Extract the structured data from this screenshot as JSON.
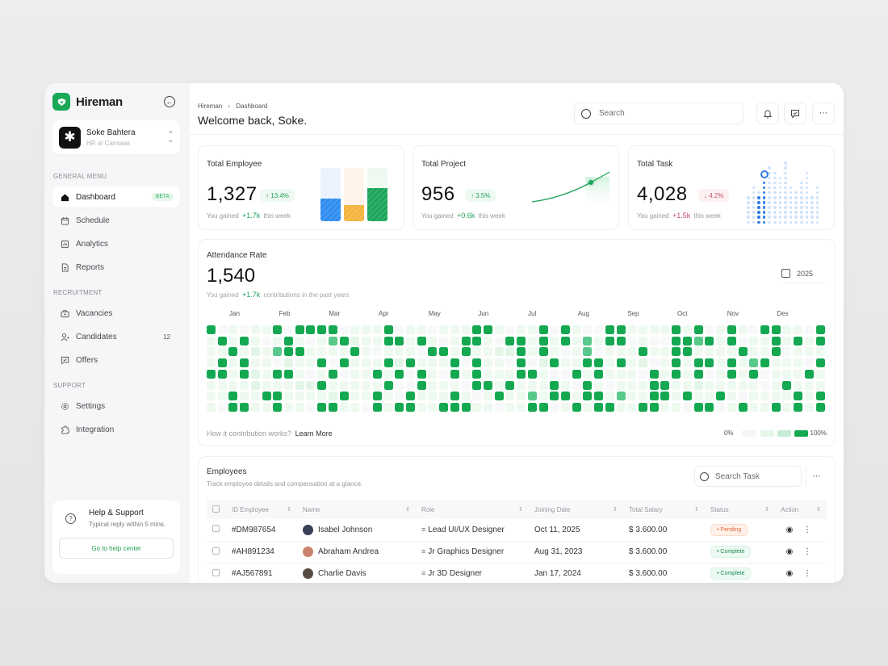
{
  "sidebar": {
    "brand": "Hireman",
    "workspace": {
      "name": "Soke Bahtera",
      "subtitle": "HR at Cansaas"
    },
    "sections": [
      {
        "label": "GENERAL MENU",
        "items": [
          {
            "label": "Dashboard",
            "icon": "home-icon",
            "badge": "BETA",
            "active": true
          },
          {
            "label": "Schedule",
            "icon": "calendar-icon"
          },
          {
            "label": "Analytics",
            "icon": "analytics-icon"
          },
          {
            "label": "Reports",
            "icon": "report-icon"
          }
        ]
      },
      {
        "label": "RECRUITMENT",
        "items": [
          {
            "label": "Vacancies",
            "icon": "briefcase-icon"
          },
          {
            "label": "Candidates",
            "icon": "user-plus-icon",
            "count": "12"
          },
          {
            "label": "Offers",
            "icon": "offer-icon"
          }
        ]
      },
      {
        "label": "SUPPORT",
        "items": [
          {
            "label": "Settings",
            "icon": "gear-icon"
          },
          {
            "label": "Integration",
            "icon": "puzzle-icon"
          }
        ]
      }
    ],
    "help": {
      "title": "Help & Support",
      "subtitle": "Typical reply within 5 mins.",
      "button": "Go to help center"
    }
  },
  "header": {
    "breadcrumb": [
      "Hireman",
      "Dashboard"
    ],
    "title": "Welcome back, Soke.",
    "search_placeholder": "Search"
  },
  "stats": [
    {
      "title": "Total Employee",
      "value": "1,327",
      "change": "↑ 13.4%",
      "trend": "up",
      "foot_prefix": "You gained",
      "foot_value": "+1.7k",
      "foot_suffix": "this week",
      "bars": [
        {
          "color": "#2f8cf0",
          "bg": "#eaf3fe",
          "pct": 42
        },
        {
          "color": "#f5b43e",
          "bg": "#fff4ea",
          "pct": 30
        },
        {
          "color": "#1aa55a",
          "bg": "#edf9f1",
          "pct": 62
        }
      ]
    },
    {
      "title": "Total Project",
      "value": "956",
      "change": "↑ 3.5%",
      "trend": "up",
      "foot_prefix": "You gained",
      "foot_value": "+0.6k",
      "foot_suffix": "this week"
    },
    {
      "title": "Total Task",
      "value": "4,028",
      "change": "↓ 4.2%",
      "trend": "down",
      "foot_prefix": "You gained",
      "foot_value": "+1.5k",
      "foot_suffix": "this week"
    }
  ],
  "attendance": {
    "title": "Attendance Rate",
    "value": "1,540",
    "sub_prefix": "You gained",
    "sub_value": "+1.7k",
    "sub_suffix": "contributions in the past years",
    "year": "2025",
    "months": [
      "Jan",
      "Feb",
      "Mar",
      "Apr",
      "May",
      "Jun",
      "Jul",
      "Aug",
      "Sep",
      "Oct",
      "Nov",
      "Des"
    ],
    "footer_text": "How it contribution works?",
    "footer_link": "Learn More",
    "legend_min": "0%",
    "legend_max": "100%",
    "legend_colors": [
      "#f4f5f7",
      "#e6f7ea",
      "#c5ecd5",
      "#14a851"
    ]
  },
  "chart_data": {
    "type": "heatmap",
    "title": "Attendance Rate",
    "x_labels": [
      "Jan",
      "Feb",
      "Mar",
      "Apr",
      "May",
      "Jun",
      "Jul",
      "Aug",
      "Sep",
      "Oct",
      "Nov",
      "Des"
    ],
    "rows": 8,
    "columns": 56,
    "levels": [
      0,
      1,
      2,
      3,
      4
    ],
    "grid": [
      "40101140444401114011011144101140410044111141401410441104",
      "14141014101342114414101441044141413144010044341401141414",
      "11412134411114101110441411224141013011141144111141140111",
      "14141102114041114241114041104024114414120141441413411104",
      "44142144101401141404104141114410041411104141401414011141",
      "11112111224111114004111044141114104101114411211111014111",
      "11411441111241141041114101411314414413114414114101111414",
      "10441141104411041441144411011440141441144110440141141414"
    ]
  },
  "employees": {
    "title": "Employees",
    "subtitle": "Track employee details and compensation at a glance.",
    "search_placeholder": "Search Task",
    "columns": [
      "ID Employee",
      "Name",
      "Role",
      "Joining Date",
      "Total Salary",
      "Status",
      "Action"
    ],
    "rows": [
      {
        "id": "#DM987654",
        "name": "Isabel Johnson",
        "avatar_color": "#3a3f58",
        "role": "Lead UI/UX Designer",
        "date": "Oct 11, 2025",
        "salary": "$ 3.600.00",
        "status": "Pending"
      },
      {
        "id": "#AH891234",
        "name": "Abraham Andrea",
        "avatar_color": "#c9826b",
        "role": "Jr Graphics Designer",
        "date": "Aug 31, 2023",
        "salary": "$ 3.600.00",
        "status": "Complete"
      },
      {
        "id": "#AJ567891",
        "name": "Charlie Davis",
        "avatar_color": "#5a4a44",
        "role": "Jr 3D Designer",
        "date": "Jan 17, 2024",
        "salary": "$ 3.600.00",
        "status": "Complete"
      }
    ]
  }
}
